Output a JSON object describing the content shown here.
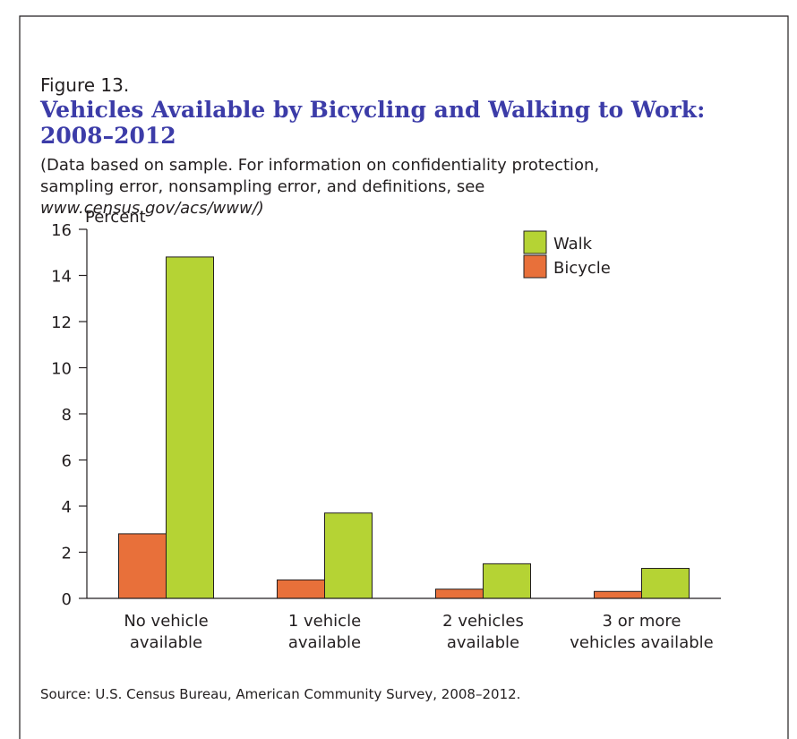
{
  "chart_data": {
    "type": "bar",
    "figure_label": "Figure 13.",
    "title": [
      "Vehicles Available by Bicycling and Walking to Work:",
      "2008–2012"
    ],
    "subtitle": [
      "(Data based on sample. For information on confidentiality protection,",
      "sampling error, nonsampling error, and definitions, see",
      "www.census.gov/acs/www/)"
    ],
    "y_label": "Percent",
    "categories": [
      "No vehicle\navailable",
      "1 vehicle\navailable",
      "2 vehicles\navailable",
      "3 or more\nvehicles available"
    ],
    "series": [
      {
        "name": "Bicycle",
        "color": "#e8703a",
        "values": [
          2.8,
          0.8,
          0.4,
          0.3
        ]
      },
      {
        "name": "Walk",
        "color": "#b5d334",
        "values": [
          14.8,
          3.7,
          1.5,
          1.3
        ]
      }
    ],
    "legend_order": [
      1,
      0
    ],
    "ylim": [
      0,
      16
    ],
    "yticks": [
      0,
      2,
      4,
      6,
      8,
      10,
      12,
      14,
      16
    ],
    "source": "Source: U.S. Census Bureau, American Community Survey, 2008–2012."
  }
}
